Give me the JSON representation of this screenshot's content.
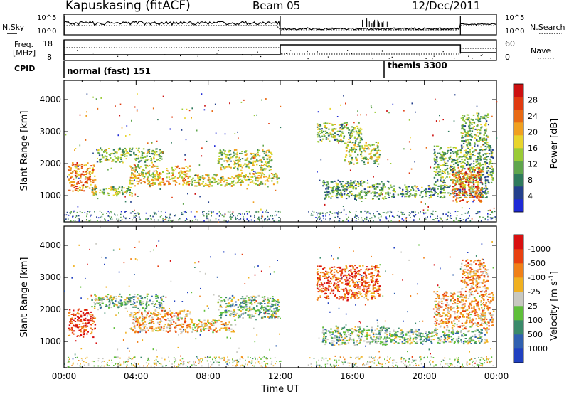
{
  "header": {
    "station": "Kapuskasing (fitACF)",
    "beam": "Beam 05",
    "date": "12/Dec/2011"
  },
  "top_panels": {
    "nsky_label": "N.Sky",
    "nsearch_label": "N.Search",
    "freq_label_1": "Freq.",
    "freq_label_2": "[MHz]",
    "nave_label": "Nave",
    "cpid_label": "CPID",
    "noise_left_ticks": [
      "10^5",
      "10^0"
    ],
    "noise_right_ticks": [
      "10^5",
      "10^0"
    ],
    "freq_ticks": [
      "18",
      "8"
    ],
    "nave_ticks": [
      "60",
      "0"
    ],
    "cpid_segments": [
      {
        "start_hour": 0,
        "end_hour": 18,
        "label": "normal (fast) 151"
      },
      {
        "start_hour": 18,
        "end_hour": 24,
        "label": "themis 3300"
      }
    ]
  },
  "chart_data": [
    {
      "type": "heatmap",
      "panel": "power",
      "xlabel": "",
      "ylabel": "Slant Range [km]",
      "xlim": [
        0,
        24
      ],
      "ylim": [
        180,
        4600
      ],
      "x_tick_hours": [
        0,
        4,
        8,
        12,
        16,
        20,
        24
      ],
      "y_ticks": [
        1000,
        2000,
        3000,
        4000
      ],
      "colorbar": {
        "label": "Power [dB]",
        "ticks": [
          "4",
          "8",
          "12",
          "16",
          "20",
          "24",
          "28"
        ],
        "colors": [
          "#1f2ad6",
          "#24408c",
          "#2f7a5c",
          "#5fa54c",
          "#9acb36",
          "#e8d42c",
          "#f0a020",
          "#e86a14",
          "#e03a10",
          "#cc1010"
        ]
      },
      "scatter_regions_hours_km": [
        {
          "t0": 0.2,
          "t1": 1.7,
          "r0": 1150,
          "r1": 2050,
          "level": 0.7
        },
        {
          "t0": 1.5,
          "t1": 3.8,
          "r0": 1000,
          "r1": 1300,
          "level": 0.45
        },
        {
          "t0": 1.8,
          "t1": 5.5,
          "r0": 2050,
          "r1": 2500,
          "level": 0.4
        },
        {
          "t0": 3.6,
          "t1": 5.0,
          "r0": 1300,
          "r1": 2000,
          "level": 0.55
        },
        {
          "t0": 5.0,
          "t1": 7.0,
          "r0": 1350,
          "r1": 1950,
          "level": 0.6
        },
        {
          "t0": 7.0,
          "t1": 9.5,
          "r0": 1300,
          "r1": 1700,
          "level": 0.5
        },
        {
          "t0": 8.5,
          "t1": 11.5,
          "r0": 1800,
          "r1": 2450,
          "level": 0.45
        },
        {
          "t0": 9.5,
          "t1": 11.9,
          "r0": 1350,
          "r1": 1750,
          "level": 0.5
        },
        {
          "t0": 14.0,
          "t1": 16.5,
          "r0": 2700,
          "r1": 3300,
          "level": 0.4
        },
        {
          "t0": 15.5,
          "t1": 17.5,
          "r0": 2000,
          "r1": 2700,
          "level": 0.45
        },
        {
          "t0": 14.3,
          "t1": 18.0,
          "r0": 900,
          "r1": 1500,
          "level": 0.35
        },
        {
          "t0": 18.0,
          "t1": 23.5,
          "r0": 950,
          "r1": 1350,
          "level": 0.3
        },
        {
          "t0": 20.5,
          "t1": 23.8,
          "r0": 1350,
          "r1": 2600,
          "level": 0.35
        },
        {
          "t0": 21.5,
          "t1": 23.2,
          "r0": 800,
          "r1": 1900,
          "level": 0.75
        },
        {
          "t0": 22.0,
          "t1": 23.5,
          "r0": 2600,
          "r1": 3600,
          "level": 0.4
        }
      ]
    },
    {
      "type": "heatmap",
      "panel": "velocity",
      "xlabel": "Time UT",
      "ylabel": "Slant Range [km]",
      "xlim": [
        0,
        24
      ],
      "ylim": [
        180,
        4600
      ],
      "x_tick_labels": [
        "00:00",
        "04:00",
        "08:00",
        "12:00",
        "16:00",
        "20:00",
        "00:00"
      ],
      "y_ticks": [
        1000,
        2000,
        3000,
        4000
      ],
      "colorbar": {
        "label": "Velocity [m s^-1]",
        "ticks": [
          "1000",
          "500",
          "100",
          "25",
          "-25",
          "-100",
          "-500",
          "-1000"
        ],
        "colors": [
          "#2040c0",
          "#3060b0",
          "#3a8a6a",
          "#5fbf3a",
          "#c8c8c0",
          "#f0b020",
          "#f08018",
          "#e84010",
          "#d81010"
        ]
      },
      "scatter_regions_hours_km": [
        {
          "t0": 0.2,
          "t1": 1.7,
          "r0": 1150,
          "r1": 2050,
          "level": 0.85
        },
        {
          "t0": 1.5,
          "t1": 5.5,
          "r0": 2050,
          "r1": 2500,
          "level": 0.4
        },
        {
          "t0": 3.6,
          "t1": 7.0,
          "r0": 1300,
          "r1": 2000,
          "level": 0.65
        },
        {
          "t0": 7.0,
          "t1": 9.5,
          "r0": 1300,
          "r1": 1700,
          "level": 0.6
        },
        {
          "t0": 8.5,
          "t1": 11.9,
          "r0": 1750,
          "r1": 2450,
          "level": 0.4
        },
        {
          "t0": 14.0,
          "t1": 17.5,
          "r0": 2300,
          "r1": 3400,
          "level": 0.8
        },
        {
          "t0": 14.3,
          "t1": 18.0,
          "r0": 900,
          "r1": 1500,
          "level": 0.4
        },
        {
          "t0": 18.0,
          "t1": 23.5,
          "r0": 950,
          "r1": 1400,
          "level": 0.4
        },
        {
          "t0": 20.5,
          "t1": 23.8,
          "r0": 1400,
          "r1": 2600,
          "level": 0.65
        },
        {
          "t0": 22.0,
          "t1": 23.5,
          "r0": 2600,
          "r1": 3600,
          "level": 0.7
        }
      ]
    }
  ]
}
